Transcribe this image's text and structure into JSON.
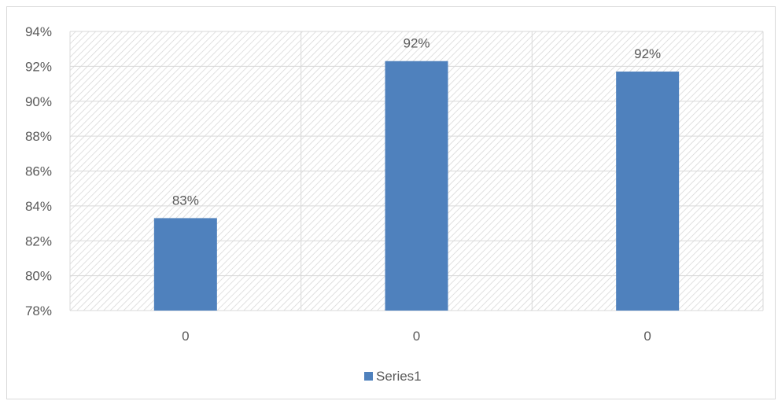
{
  "chart_data": {
    "type": "bar",
    "categories": [
      "0",
      "0",
      "0"
    ],
    "series": [
      {
        "name": "Series1",
        "values": [
          0.833,
          0.923,
          0.917
        ],
        "color": "#4f81bd"
      }
    ],
    "data_labels": [
      "83%",
      "92%",
      "92%"
    ],
    "ylim": [
      0.78,
      0.94
    ],
    "yticks": [
      0.78,
      0.8,
      0.82,
      0.84,
      0.86,
      0.88,
      0.9,
      0.92,
      0.94
    ],
    "ytick_labels": [
      "78%",
      "80%",
      "82%",
      "84%",
      "86%",
      "88%",
      "90%",
      "92%",
      "94%"
    ],
    "title": "",
    "xlabel": "",
    "ylabel": "",
    "grid": true,
    "plot_background": "diagonal-hatch",
    "legend_position": "bottom"
  }
}
